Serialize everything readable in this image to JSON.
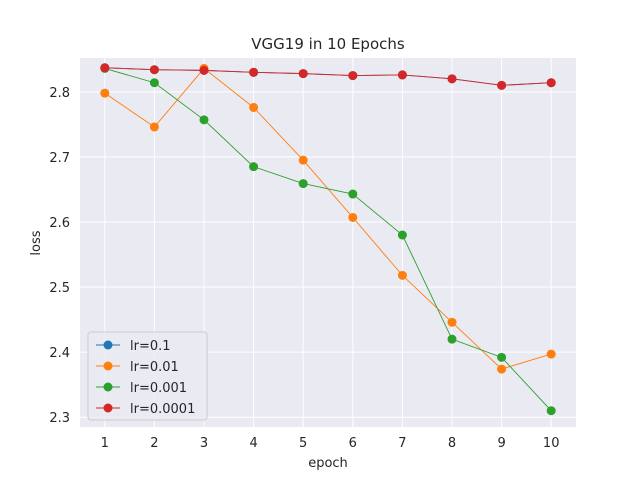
{
  "chart_data": {
    "type": "line",
    "title": "VGG19 in 10 Epochs",
    "xlabel": "epoch",
    "ylabel": "loss",
    "x": [
      1,
      2,
      3,
      4,
      5,
      6,
      7,
      8,
      9,
      10
    ],
    "xlim": [
      0.5,
      10.5
    ],
    "ylim": [
      2.285,
      2.852
    ],
    "yticks": [
      2.3,
      2.4,
      2.5,
      2.6,
      2.7,
      2.8
    ],
    "ytick_labels": [
      "2.3",
      "2.4",
      "2.5",
      "2.6",
      "2.7",
      "2.8"
    ],
    "xtick_labels": [
      "1",
      "2",
      "3",
      "4",
      "5",
      "6",
      "7",
      "8",
      "9",
      "10"
    ],
    "grid": true,
    "legend_position": "lower-left",
    "background_color": "#eaeaf2",
    "series": [
      {
        "name": "lr=0.1",
        "color": "#1f77b4",
        "values": [
          2.837,
          2.834,
          2.833,
          2.83,
          2.828,
          2.825,
          2.826,
          2.82,
          2.81,
          2.814
        ]
      },
      {
        "name": "lr=0.01",
        "color": "#ff7f0e",
        "values": [
          2.798,
          2.746,
          2.836,
          2.776,
          2.695,
          2.607,
          2.518,
          2.446,
          2.374,
          2.397
        ]
      },
      {
        "name": "lr=0.001",
        "color": "#2ca02c",
        "values": [
          2.836,
          2.814,
          2.757,
          2.685,
          2.659,
          2.643,
          2.58,
          2.42,
          2.392,
          2.31
        ]
      },
      {
        "name": "lr=0.0001",
        "color": "#d62728",
        "values": [
          2.837,
          2.834,
          2.833,
          2.83,
          2.828,
          2.825,
          2.826,
          2.82,
          2.81,
          2.814
        ]
      }
    ]
  }
}
